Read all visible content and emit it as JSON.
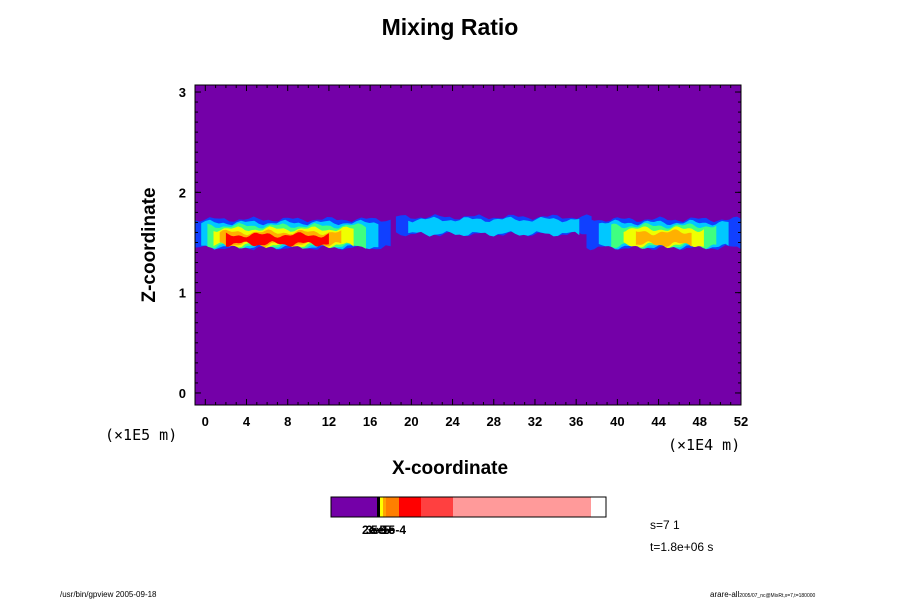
{
  "chart_data": {
    "type": "heatmap",
    "title": "Mixing Ratio",
    "xlabel": "X-coordinate",
    "ylabel": "Z-coordinate",
    "x_scale_label": "(×1E4 m)",
    "y_scale_label": "(×1E5 m)",
    "xlim": [
      -1,
      52
    ],
    "ylim": [
      -0.12,
      3.07
    ],
    "x_ticks": [
      "0",
      "4",
      "8",
      "12",
      "16",
      "20",
      "24",
      "28",
      "32",
      "36",
      "40",
      "44",
      "48",
      "52"
    ],
    "y_ticks": [
      "0",
      "1",
      "2",
      "3"
    ],
    "background_color": "#7400a8",
    "levels_colors": [
      "#7400a8",
      "#1040ff",
      "#00c8ff",
      "#40ff80",
      "#f0ff00",
      "#ffb000",
      "#ff0000"
    ],
    "colorbar_colors": [
      "#7400a8",
      "#ffff00",
      "#ffa500",
      "#ff7f00",
      "#ff0000",
      "#ff4040",
      "#ff9a9a"
    ],
    "colorbar_labels": [
      "2e-5",
      "3e-5",
      "5e-5",
      "1e-4"
    ],
    "layer": {
      "z_center": 1.62,
      "segments": [
        {
          "x": [
            -1,
            18.0
          ],
          "intensity": 1.0
        },
        {
          "x": [
            18.5,
            37.5
          ],
          "intensity": 0.35
        },
        {
          "x": [
            37.0,
            52
          ],
          "intensity": 0.9
        }
      ]
    }
  },
  "footer": {
    "s_label": "s=7 1",
    "t_label": "t=1.8e+06 s",
    "left_note": "/usr/bin/gpview 2005-09-18",
    "right_note_main": "arare-all",
    "right_note_sub": "2005/07_nc@MixRt,x=7,t=180000"
  }
}
